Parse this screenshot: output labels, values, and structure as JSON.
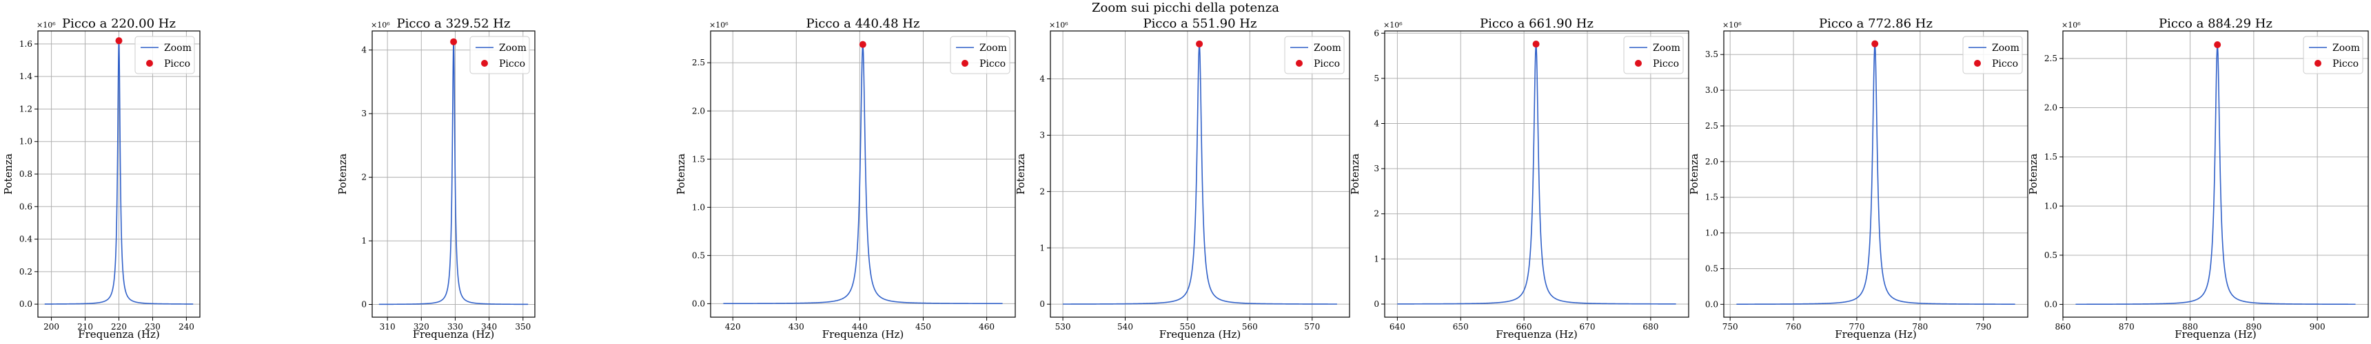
{
  "figure": {
    "suptitle": "Zoom sui picchi della potenza",
    "colors": {
      "line": "#3060c8",
      "peak": "#e0101c",
      "grid": "#b0b0b0"
    }
  },
  "chart_data": [
    {
      "type": "line",
      "title": "Picco a 220.00 Hz",
      "xlabel": "Frequenza (Hz)",
      "ylabel": "Potenza",
      "y_multiplier": "×10⁶",
      "xlim": [
        196,
        244
      ],
      "ylim": [
        -0.08,
        1.68
      ],
      "xticks": [
        200,
        210,
        220,
        230,
        240
      ],
      "yticks": [
        0.0,
        0.2,
        0.4,
        0.6,
        0.8,
        1.0,
        1.2,
        1.4,
        1.6
      ],
      "ytick_labels": [
        "0.0",
        "0.2",
        "0.4",
        "0.6",
        "0.8",
        "1.0",
        "1.2",
        "1.4",
        "1.6"
      ],
      "series": [
        {
          "name": "Zoom",
          "kind": "line",
          "x_range": [
            198,
            242
          ],
          "peak_x": 220.0,
          "peak_y": 1.62,
          "half_width": 0.45
        },
        {
          "name": "Picco",
          "kind": "scatter",
          "x": [
            220.0
          ],
          "y": [
            1.62
          ]
        }
      ],
      "legend": "top-right",
      "grid": true
    },
    {
      "type": "line",
      "title": "Picco a 329.52 Hz",
      "xlabel": "Frequenza (Hz)",
      "ylabel": "Potenza",
      "y_multiplier": "×10⁶",
      "xlim": [
        305.5,
        353.5
      ],
      "ylim": [
        -0.2,
        4.3
      ],
      "xticks": [
        310,
        320,
        330,
        340,
        350
      ],
      "yticks": [
        0,
        1,
        2,
        3,
        4
      ],
      "ytick_labels": [
        "0",
        "1",
        "2",
        "3",
        "4"
      ],
      "series": [
        {
          "name": "Zoom",
          "kind": "line",
          "x_range": [
            307.5,
            351.5
          ],
          "peak_x": 329.52,
          "peak_y": 4.13,
          "half_width": 0.45
        },
        {
          "name": "Picco",
          "kind": "scatter",
          "x": [
            329.52
          ],
          "y": [
            4.13
          ]
        }
      ],
      "legend": "top-right",
      "grid": true
    },
    {
      "type": "line",
      "title": "Picco a 440.48 Hz",
      "xlabel": "Frequenza (Hz)",
      "ylabel": "Potenza",
      "y_multiplier": "×10⁶",
      "xlim": [
        416.5,
        464.5
      ],
      "ylim": [
        -0.14,
        2.83
      ],
      "xticks": [
        420,
        430,
        440,
        450,
        460
      ],
      "yticks": [
        0.0,
        0.5,
        1.0,
        1.5,
        2.0,
        2.5
      ],
      "ytick_labels": [
        "0.0",
        "0.5",
        "1.0",
        "1.5",
        "2.0",
        "2.5"
      ],
      "series": [
        {
          "name": "Zoom",
          "kind": "line",
          "x_range": [
            418.5,
            462.5
          ],
          "peak_x": 440.48,
          "peak_y": 2.69,
          "half_width": 0.45
        },
        {
          "name": "Picco",
          "kind": "scatter",
          "x": [
            440.48
          ],
          "y": [
            2.69
          ]
        }
      ],
      "legend": "top-right",
      "grid": true
    },
    {
      "type": "line",
      "title": "Picco a 551.90 Hz",
      "xlabel": "Frequenza (Hz)",
      "ylabel": "Potenza",
      "y_multiplier": "×10⁶",
      "xlim": [
        528,
        576
      ],
      "ylim": [
        -0.23,
        4.85
      ],
      "xticks": [
        530,
        540,
        550,
        560,
        570
      ],
      "yticks": [
        0,
        1,
        2,
        3,
        4
      ],
      "ytick_labels": [
        "0",
        "1",
        "2",
        "3",
        "4"
      ],
      "series": [
        {
          "name": "Zoom",
          "kind": "line",
          "x_range": [
            530,
            574
          ],
          "peak_x": 551.9,
          "peak_y": 4.62,
          "half_width": 0.45
        },
        {
          "name": "Picco",
          "kind": "scatter",
          "x": [
            551.9
          ],
          "y": [
            4.62
          ]
        }
      ],
      "legend": "top-right",
      "grid": true
    },
    {
      "type": "line",
      "title": "Picco a 661.90 Hz",
      "xlabel": "Frequenza (Hz)",
      "ylabel": "Potenza",
      "y_multiplier": "×10⁶",
      "xlim": [
        638,
        686
      ],
      "ylim": [
        -0.29,
        6.05
      ],
      "xticks": [
        640,
        650,
        660,
        670,
        680
      ],
      "yticks": [
        0,
        1,
        2,
        3,
        4,
        5,
        6
      ],
      "ytick_labels": [
        "0",
        "1",
        "2",
        "3",
        "4",
        "5",
        "6"
      ],
      "series": [
        {
          "name": "Zoom",
          "kind": "line",
          "x_range": [
            640,
            684
          ],
          "peak_x": 661.9,
          "peak_y": 5.76,
          "half_width": 0.45
        },
        {
          "name": "Picco",
          "kind": "scatter",
          "x": [
            661.9
          ],
          "y": [
            5.76
          ]
        }
      ],
      "legend": "top-right",
      "grid": true
    },
    {
      "type": "line",
      "title": "Picco a 772.86 Hz",
      "xlabel": "Frequenza (Hz)",
      "ylabel": "Potenza",
      "y_multiplier": "×10⁶",
      "xlim": [
        749,
        797
      ],
      "ylim": [
        -0.18,
        3.83
      ],
      "xticks": [
        750,
        760,
        770,
        780,
        790
      ],
      "yticks": [
        0.0,
        0.5,
        1.0,
        1.5,
        2.0,
        2.5,
        3.0,
        3.5
      ],
      "ytick_labels": [
        "0.0",
        "0.5",
        "1.0",
        "1.5",
        "2.0",
        "2.5",
        "3.0",
        "3.5"
      ],
      "series": [
        {
          "name": "Zoom",
          "kind": "line",
          "x_range": [
            751,
            795
          ],
          "peak_x": 772.86,
          "peak_y": 3.65,
          "half_width": 0.45
        },
        {
          "name": "Picco",
          "kind": "scatter",
          "x": [
            772.86
          ],
          "y": [
            3.65
          ]
        }
      ],
      "legend": "top-right",
      "grid": true
    },
    {
      "type": "line",
      "title": "Picco a 884.29 Hz",
      "xlabel": "Frequenza (Hz)",
      "ylabel": "Potenza",
      "y_multiplier": "×10⁶",
      "xlim": [
        860,
        908
      ],
      "ylim": [
        -0.13,
        2.78
      ],
      "xticks": [
        860,
        870,
        880,
        890,
        900
      ],
      "yticks": [
        0.0,
        0.5,
        1.0,
        1.5,
        2.0,
        2.5
      ],
      "ytick_labels": [
        "0.0",
        "0.5",
        "1.0",
        "1.5",
        "2.0",
        "2.5"
      ],
      "series": [
        {
          "name": "Zoom",
          "kind": "line",
          "x_range": [
            862,
            906
          ],
          "peak_x": 884.29,
          "peak_y": 2.64,
          "half_width": 0.45
        },
        {
          "name": "Picco",
          "kind": "scatter",
          "x": [
            884.29
          ],
          "y": [
            2.64
          ]
        }
      ],
      "legend": "top-right",
      "grid": true
    }
  ]
}
